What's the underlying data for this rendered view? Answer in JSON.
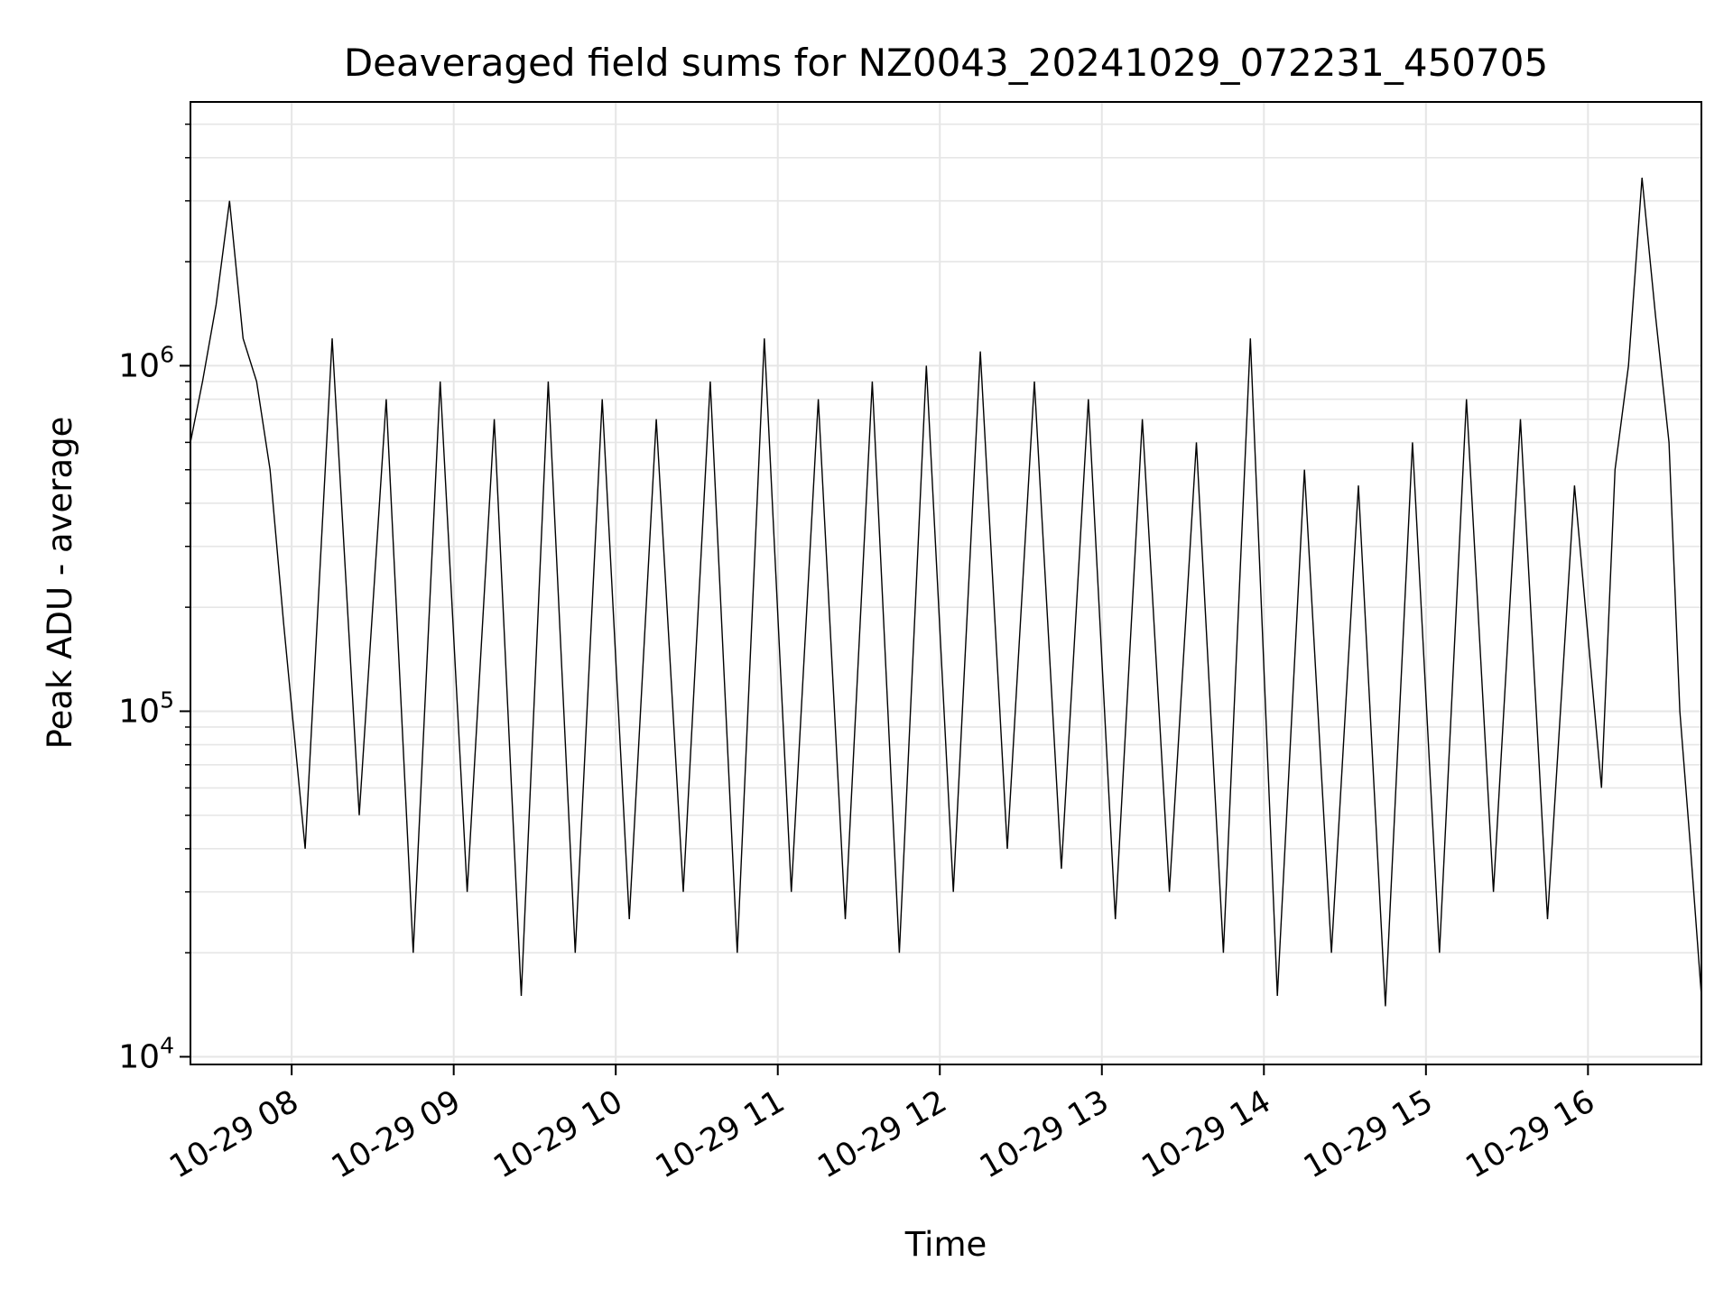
{
  "chart_data": {
    "type": "line",
    "title": "Deaveraged field sums for NZ0043_20241029_072231_450705",
    "xlabel": "Time",
    "ylabel": "Peak ADU - average",
    "y_scale": "log",
    "ylim": [
      9500,
      5800000
    ],
    "xlim": [
      "2024-10-29 07:22:31",
      "2024-10-29 16:42:00"
    ],
    "grid": true,
    "legend": "none",
    "colors": {
      "line": "#000000",
      "grid": "#e6e6e6",
      "axes": "#000000",
      "background": "#ffffff"
    },
    "x_ticks": [
      {
        "value": "2024-10-29 08:00",
        "label": "10-29 08"
      },
      {
        "value": "2024-10-29 09:00",
        "label": "10-29 09"
      },
      {
        "value": "2024-10-29 10:00",
        "label": "10-29 10"
      },
      {
        "value": "2024-10-29 11:00",
        "label": "10-29 11"
      },
      {
        "value": "2024-10-29 12:00",
        "label": "10-29 12"
      },
      {
        "value": "2024-10-29 13:00",
        "label": "10-29 13"
      },
      {
        "value": "2024-10-29 14:00",
        "label": "10-29 14"
      },
      {
        "value": "2024-10-29 15:00",
        "label": "10-29 15"
      },
      {
        "value": "2024-10-29 16:00",
        "label": "10-29 16"
      }
    ],
    "y_ticks": [
      {
        "value": 10000,
        "base": "10",
        "exp": "4"
      },
      {
        "value": 100000,
        "base": "10",
        "exp": "5"
      },
      {
        "value": 1000000,
        "base": "10",
        "exp": "6"
      }
    ],
    "series": [
      {
        "x": [
          "2024-10-29 07:22:31",
          "2024-10-29 07:27",
          "2024-10-29 07:32",
          "2024-10-29 07:37",
          "2024-10-29 07:42",
          "2024-10-29 07:47",
          "2024-10-29 07:52",
          "2024-10-29 07:57",
          "2024-10-29 08:05",
          "2024-10-29 08:15",
          "2024-10-29 08:25",
          "2024-10-29 08:35",
          "2024-10-29 08:45",
          "2024-10-29 08:55",
          "2024-10-29 09:05",
          "2024-10-29 09:15",
          "2024-10-29 09:25",
          "2024-10-29 09:35",
          "2024-10-29 09:45",
          "2024-10-29 09:55",
          "2024-10-29 10:05",
          "2024-10-29 10:15",
          "2024-10-29 10:25",
          "2024-10-29 10:35",
          "2024-10-29 10:45",
          "2024-10-29 10:55",
          "2024-10-29 11:05",
          "2024-10-29 11:15",
          "2024-10-29 11:25",
          "2024-10-29 11:35",
          "2024-10-29 11:45",
          "2024-10-29 11:55",
          "2024-10-29 12:05",
          "2024-10-29 12:15",
          "2024-10-29 12:25",
          "2024-10-29 12:35",
          "2024-10-29 12:45",
          "2024-10-29 12:55",
          "2024-10-29 13:05",
          "2024-10-29 13:15",
          "2024-10-29 13:25",
          "2024-10-29 13:35",
          "2024-10-29 13:45",
          "2024-10-29 13:55",
          "2024-10-29 14:05",
          "2024-10-29 14:15",
          "2024-10-29 14:25",
          "2024-10-29 14:35",
          "2024-10-29 14:45",
          "2024-10-29 14:55",
          "2024-10-29 15:05",
          "2024-10-29 15:15",
          "2024-10-29 15:25",
          "2024-10-29 15:35",
          "2024-10-29 15:45",
          "2024-10-29 15:55",
          "2024-10-29 16:05",
          "2024-10-29 16:10",
          "2024-10-29 16:15",
          "2024-10-29 16:20",
          "2024-10-29 16:25",
          "2024-10-29 16:30",
          "2024-10-29 16:34",
          "2024-10-29 16:38",
          "2024-10-29 16:42"
        ],
        "y": [
          600000,
          900000,
          1500000,
          3000000,
          1200000,
          900000,
          500000,
          180000,
          40000,
          1200000,
          50000,
          800000,
          20000,
          900000,
          30000,
          700000,
          15000,
          900000,
          20000,
          800000,
          25000,
          700000,
          30000,
          900000,
          20000,
          1200000,
          30000,
          800000,
          25000,
          900000,
          20000,
          1000000,
          30000,
          1100000,
          40000,
          900000,
          35000,
          800000,
          25000,
          700000,
          30000,
          600000,
          20000,
          1200000,
          15000,
          500000,
          20000,
          450000,
          14000,
          600000,
          20000,
          800000,
          30000,
          700000,
          25000,
          450000,
          60000,
          500000,
          1000000,
          3500000,
          1400000,
          600000,
          100000,
          40000,
          15000
        ]
      }
    ]
  }
}
